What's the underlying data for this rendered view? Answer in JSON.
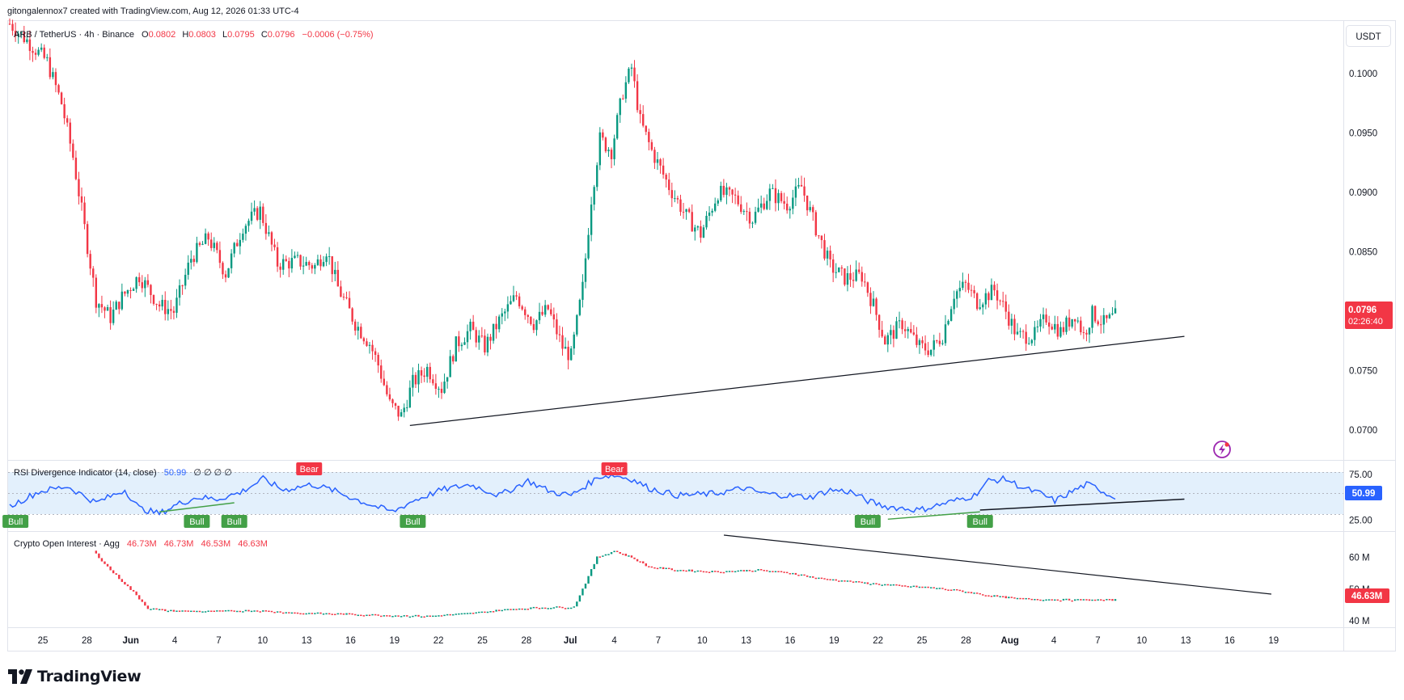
{
  "credit": "gitongalennox7 created with TradingView.com, Aug 12, 2026 01:33 UTC-4",
  "brand": "TradingView",
  "currency_label": "USDT",
  "main_legend": {
    "symbol": "ARB / TetherUS · 4h · Binance",
    "o_label": "O",
    "o_value": "0.0802",
    "h_label": "H",
    "h_value": "0.0803",
    "l_label": "L",
    "l_value": "0.0795",
    "c_label": "C",
    "c_value": "0.0796",
    "change": "−0.0006 (−0.75%)"
  },
  "price_badge": {
    "value": "0.0796",
    "countdown": "02:26:40"
  },
  "rsi_legend": {
    "name": "RSI Divergence Indicator (14, close)",
    "value": "50.99",
    "extras": "∅ ∅ ∅ ∅"
  },
  "rsi_badge": "50.99",
  "oi_legend": {
    "name": "Crypto Open Interest · Agg",
    "o": "46.73M",
    "h": "46.73M",
    "l": "46.53M",
    "c": "46.63M"
  },
  "oi_badge": "46.63M",
  "colors": {
    "up": "#089981",
    "down": "#f23645",
    "rsi_line": "#2962ff",
    "bull": "#43a047",
    "bear": "#f23645",
    "band": "#e3f0fc",
    "trendline": "#131722"
  },
  "chart_data": [
    {
      "type": "candlestick",
      "ylim": [
        0.0675,
        0.1045
      ],
      "y_ticks": [
        "0.1000",
        "0.0950",
        "0.0900",
        "0.0850",
        "0.0750",
        "0.0700"
      ],
      "x_ticks": [
        "25",
        "28",
        "Jun",
        "4",
        "7",
        "10",
        "13",
        "16",
        "19",
        "22",
        "25",
        "28",
        "Jul",
        "4",
        "7",
        "10",
        "13",
        "16",
        "19",
        "22",
        "25",
        "28",
        "Aug",
        "4",
        "7",
        "10",
        "13",
        "16",
        "19"
      ],
      "closes_path": [
        [
          0,
          0.1042
        ],
        [
          6,
          0.1028
        ],
        [
          13,
          0.101
        ],
        [
          18,
          0.0975
        ],
        [
          22,
          0.093
        ],
        [
          27,
          0.0855
        ],
        [
          30,
          0.081
        ],
        [
          35,
          0.0795
        ],
        [
          39,
          0.0812
        ],
        [
          45,
          0.083
        ],
        [
          52,
          0.0805
        ],
        [
          57,
          0.08
        ],
        [
          63,
          0.0845
        ],
        [
          69,
          0.0862
        ],
        [
          75,
          0.0832
        ],
        [
          81,
          0.0872
        ],
        [
          87,
          0.0885
        ],
        [
          93,
          0.084
        ],
        [
          100,
          0.0842
        ],
        [
          106,
          0.0838
        ],
        [
          110,
          0.0852
        ],
        [
          114,
          0.082
        ],
        [
          120,
          0.079
        ],
        [
          125,
          0.0773
        ],
        [
          128,
          0.0755
        ],
        [
          132,
          0.0722
        ],
        [
          136,
          0.0712
        ],
        [
          140,
          0.074
        ],
        [
          145,
          0.0752
        ],
        [
          150,
          0.0735
        ],
        [
          155,
          0.0772
        ],
        [
          160,
          0.0785
        ],
        [
          165,
          0.077
        ],
        [
          170,
          0.0792
        ],
        [
          176,
          0.0813
        ],
        [
          182,
          0.079
        ],
        [
          187,
          0.0802
        ],
        [
          192,
          0.077
        ],
        [
          195,
          0.0762
        ],
        [
          199,
          0.082
        ],
        [
          202,
          0.0895
        ],
        [
          205,
          0.0945
        ],
        [
          209,
          0.0935
        ],
        [
          213,
          0.0985
        ],
        [
          216,
          0.1005
        ],
        [
          219,
          0.096
        ],
        [
          223,
          0.0935
        ],
        [
          229,
          0.0905
        ],
        [
          235,
          0.088
        ],
        [
          240,
          0.0865
        ],
        [
          246,
          0.09
        ],
        [
          252,
          0.0895
        ],
        [
          258,
          0.0878
        ],
        [
          264,
          0.09
        ],
        [
          270,
          0.089
        ],
        [
          275,
          0.0905
        ],
        [
          280,
          0.087
        ],
        [
          285,
          0.0838
        ],
        [
          290,
          0.0828
        ],
        [
          296,
          0.083
        ],
        [
          300,
          0.0805
        ],
        [
          304,
          0.0775
        ],
        [
          310,
          0.079
        ],
        [
          316,
          0.077
        ],
        [
          320,
          0.0768
        ],
        [
          324,
          0.078
        ],
        [
          328,
          0.0815
        ],
        [
          332,
          0.0822
        ],
        [
          336,
          0.0808
        ],
        [
          342,
          0.0818
        ],
        [
          346,
          0.08
        ],
        [
          350,
          0.0779
        ],
        [
          356,
          0.078
        ],
        [
          360,
          0.0795
        ],
        [
          365,
          0.0783
        ],
        [
          370,
          0.0798
        ],
        [
          373,
          0.078
        ],
        [
          376,
          0.0798
        ],
        [
          380,
          0.079
        ],
        [
          384,
          0.0796
        ]
      ],
      "trendline": [
        [
          0.0704,
          139
        ],
        [
          0.0779,
          408
        ]
      ]
    },
    {
      "type": "line",
      "title": "RSI Divergence Indicator (14, close)",
      "ylim": [
        13,
        90
      ],
      "y_ticks": [
        "75.00",
        "25.00"
      ],
      "bands": [
        25,
        50,
        75
      ],
      "path": [
        [
          0,
          40
        ],
        [
          10,
          56
        ],
        [
          20,
          62
        ],
        [
          30,
          44
        ],
        [
          40,
          58
        ],
        [
          45,
          38
        ],
        [
          52,
          32
        ],
        [
          58,
          42
        ],
        [
          65,
          50
        ],
        [
          72,
          48
        ],
        [
          80,
          55
        ],
        [
          88,
          70
        ],
        [
          95,
          58
        ],
        [
          105,
          64
        ],
        [
          112,
          58
        ],
        [
          120,
          48
        ],
        [
          127,
          40
        ],
        [
          133,
          34
        ],
        [
          140,
          46
        ],
        [
          150,
          58
        ],
        [
          160,
          64
        ],
        [
          170,
          52
        ],
        [
          180,
          68
        ],
        [
          188,
          56
        ],
        [
          195,
          52
        ],
        [
          205,
          73
        ],
        [
          210,
          74
        ],
        [
          216,
          70
        ],
        [
          222,
          60
        ],
        [
          232,
          52
        ],
        [
          245,
          54
        ],
        [
          255,
          60
        ],
        [
          262,
          54
        ],
        [
          270,
          52
        ],
        [
          278,
          50
        ],
        [
          285,
          58
        ],
        [
          292,
          56
        ],
        [
          298,
          46
        ],
        [
          304,
          40
        ],
        [
          310,
          38
        ],
        [
          316,
          36
        ],
        [
          322,
          41
        ],
        [
          328,
          46
        ],
        [
          335,
          52
        ],
        [
          340,
          68
        ],
        [
          346,
          70
        ],
        [
          352,
          60
        ],
        [
          358,
          54
        ],
        [
          363,
          46
        ],
        [
          370,
          58
        ],
        [
          374,
          64
        ],
        [
          378,
          60
        ],
        [
          382,
          52
        ],
        [
          384,
          51
        ]
      ],
      "markers": [
        {
          "label": "Bull",
          "index": 2
        },
        {
          "label": "Bull",
          "index": 65
        },
        {
          "label": "Bull",
          "index": 78
        },
        {
          "label": "Bull",
          "index": 140
        },
        {
          "label": "Bear",
          "index": 104
        },
        {
          "label": "Bear",
          "index": 210
        },
        {
          "label": "Bull",
          "index": 298
        },
        {
          "label": "Bull",
          "index": 337
        }
      ]
    },
    {
      "type": "bar",
      "title": "Crypto Open Interest · Agg",
      "ylim": [
        38,
        68
      ],
      "y_ticks": [
        "60 M",
        "50 M",
        "40 M"
      ],
      "path": [
        [
          0,
          70
        ],
        [
          20,
          67
        ],
        [
          28,
          63
        ],
        [
          35,
          56
        ],
        [
          43,
          49
        ],
        [
          48,
          44
        ],
        [
          55,
          43.2
        ],
        [
          70,
          43
        ],
        [
          85,
          43.3
        ],
        [
          100,
          42.5
        ],
        [
          115,
          42.2
        ],
        [
          130,
          41.8
        ],
        [
          145,
          41.5
        ],
        [
          160,
          42.4
        ],
        [
          175,
          43.8
        ],
        [
          184,
          44.2
        ],
        [
          196,
          44.4
        ],
        [
          200,
          52
        ],
        [
          204,
          60
        ],
        [
          210,
          62
        ],
        [
          216,
          60
        ],
        [
          222,
          57
        ],
        [
          232,
          56
        ],
        [
          245,
          55.5
        ],
        [
          260,
          56
        ],
        [
          272,
          55
        ],
        [
          280,
          53.5
        ],
        [
          296,
          52
        ],
        [
          310,
          51
        ],
        [
          320,
          50.5
        ],
        [
          330,
          49.5
        ],
        [
          340,
          48
        ],
        [
          350,
          47
        ],
        [
          360,
          46.8
        ],
        [
          370,
          46.6
        ],
        [
          384,
          46.6
        ]
      ]
    }
  ]
}
